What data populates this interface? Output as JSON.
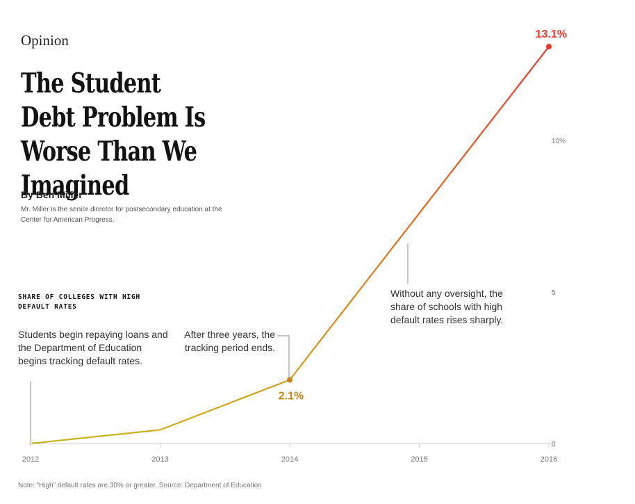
{
  "header": {
    "kicker": "Opinion",
    "headline": "The Student Debt Problem Is Worse Than We Imagined",
    "byline": "By Ben Miller",
    "bio": "Mr. Miller is the senior director for postsecondary education at the Center for American Progress."
  },
  "chart_label": "SHARE OF COLLEGES WITH HIGH DEFAULT RATES",
  "annotations": {
    "start": "Students begin repaying loans and the Department of Education begins tracking default rates.",
    "tracking_end": "After three years, the tracking period ends.",
    "oversight": "Without any oversight, the share of schools with high default rates rises sharply."
  },
  "footnote": "Note: “High” default rates are 30% or greater. Source: Department of Education",
  "chart_data": {
    "type": "line",
    "title": "",
    "xlabel": "",
    "ylabel": "",
    "x": [
      2012,
      2013,
      2014,
      2015,
      2016
    ],
    "xticks": [
      "2012",
      "2013",
      "2014",
      "2015",
      "2016"
    ],
    "yticks": [
      0,
      5,
      10
    ],
    "ytick_labels": [
      "0",
      "5",
      "10%"
    ],
    "ylim": [
      0,
      13.1
    ],
    "series": [
      {
        "values": [
          0.0,
          0.45,
          2.1,
          7.6,
          13.1
        ]
      }
    ],
    "data_labels": [
      {
        "x": 2014,
        "y": 2.1,
        "text": "2.1%",
        "color": "#c8861a"
      },
      {
        "x": 2016,
        "y": 13.1,
        "text": "13.1%",
        "color": "#e8382a"
      }
    ],
    "grid": false,
    "colors": {
      "low": "#c8b41e",
      "mid": "#d9861a",
      "high": "#e8382a",
      "axis": "#cccccc",
      "tick_text": "#777777"
    }
  }
}
